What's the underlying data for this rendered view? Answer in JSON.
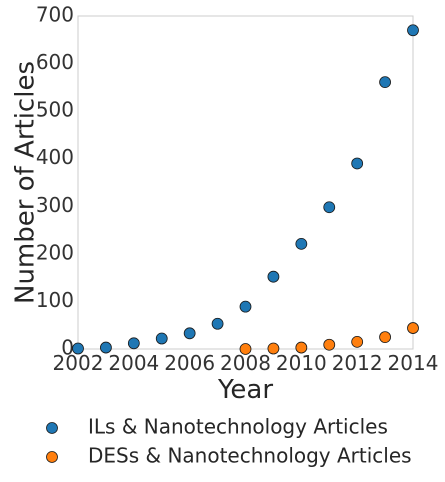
{
  "chart_data": {
    "type": "scatter",
    "title": "",
    "xlabel": "Year",
    "ylabel": "Number of Articles",
    "xlim": [
      2002,
      2014
    ],
    "ylim": [
      0,
      700
    ],
    "xticks": [
      2002,
      2004,
      2006,
      2008,
      2010,
      2012,
      2014
    ],
    "yticks": [
      0,
      100,
      200,
      300,
      400,
      500,
      600,
      700
    ],
    "grid": false,
    "legend_position": "bottom",
    "series": [
      {
        "name": "ILs & Nanotechnology Articles",
        "color": "#1f77b4",
        "x": [
          2002,
          2003,
          2004,
          2005,
          2006,
          2007,
          2008,
          2009,
          2010,
          2011,
          2012,
          2013,
          2014
        ],
        "y": [
          1,
          3,
          12,
          22,
          33,
          53,
          89,
          152,
          221,
          298,
          390,
          561,
          670
        ]
      },
      {
        "name": "DESs & Nanotechnology Articles",
        "color": "#ff7f0e",
        "x": [
          2008,
          2009,
          2010,
          2011,
          2012,
          2013,
          2014
        ],
        "y": [
          0,
          1,
          3,
          9,
          15,
          25,
          44
        ]
      }
    ]
  }
}
